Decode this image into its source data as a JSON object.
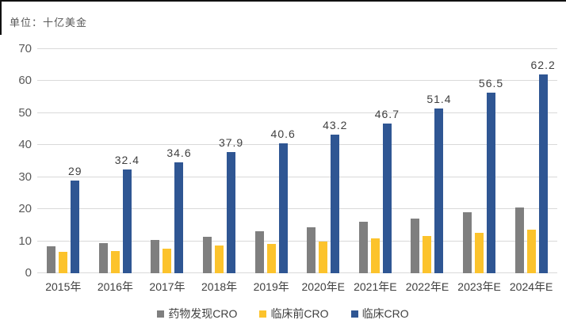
{
  "chart": {
    "unit_label": "单位：十亿美金"
  },
  "chart_data": {
    "type": "bar",
    "title": "",
    "unit_label": "单位：十亿美金",
    "categories": [
      "2015年",
      "2016年",
      "2017年",
      "2018年",
      "2019年",
      "2020年E",
      "2021年E",
      "2022年E",
      "2023年E",
      "2024年E"
    ],
    "series": [
      {
        "name": "药物发现CRO",
        "color": "#7f7f7f",
        "values": [
          8.5,
          9.5,
          10.3,
          11.5,
          13.1,
          14.4,
          16.0,
          17.2,
          19.0,
          20.5
        ],
        "data_labels": null
      },
      {
        "name": "临床前CRO",
        "color": "#fcc32c",
        "values": [
          6.8,
          7.0,
          7.7,
          8.6,
          9.2,
          10.0,
          10.8,
          11.7,
          12.6,
          13.5
        ],
        "data_labels": null
      },
      {
        "name": "临床CRO",
        "color": "#2f5693",
        "values": [
          29,
          32.4,
          34.6,
          37.9,
          40.6,
          43.2,
          46.7,
          51.4,
          56.5,
          62.2
        ],
        "data_labels": [
          "29",
          "32.4",
          "34.6",
          "37.9",
          "40.6",
          "43.2",
          "46.7",
          "51.4",
          "56.5",
          "62.2"
        ]
      }
    ],
    "ylim": [
      0,
      70
    ],
    "yticks": [
      0,
      10,
      20,
      30,
      40,
      50,
      60,
      70
    ],
    "grid": "horizontal",
    "gridline_color": "#d9d9d9",
    "legend_position": "bottom",
    "axis_label_color": "#595959",
    "tick_label_color": "#404040",
    "data_label_color": "#404040"
  }
}
